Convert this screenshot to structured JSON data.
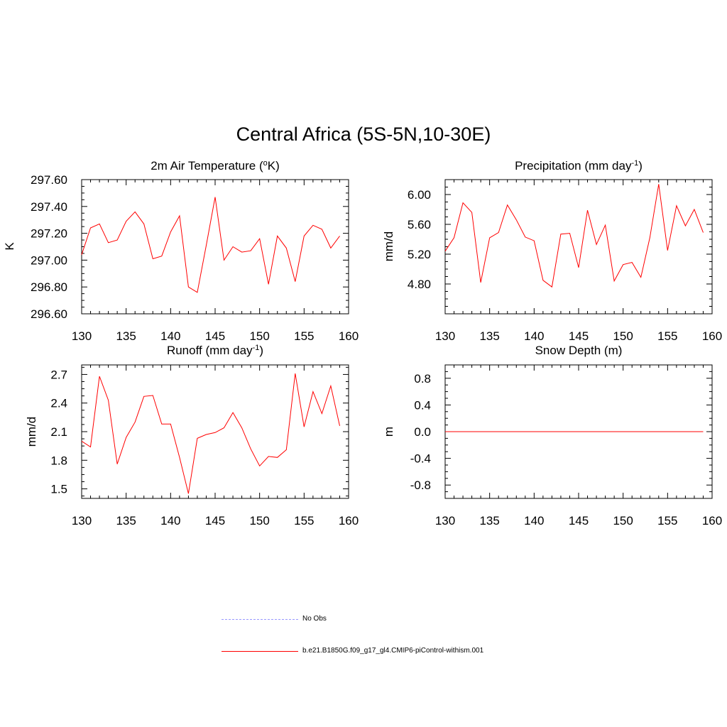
{
  "figure_title": "Central Africa (5S-5N,10-30E)",
  "chart_data": [
    {
      "type": "line",
      "title": "2m Air Temperature (",
      "title_sup": "o",
      "title_suffix": "K)",
      "ylabel": "K",
      "xlim": [
        130,
        160
      ],
      "ylim": [
        296.6,
        297.6
      ],
      "xticks": [
        "130",
        "135",
        "140",
        "145",
        "150",
        "155",
        "160"
      ],
      "yticks": [
        {
          "v": 296.6,
          "t": "296.60"
        },
        {
          "v": 296.8,
          "t": "296.80"
        },
        {
          "v": 297.0,
          "t": "297.00"
        },
        {
          "v": 297.2,
          "t": "297.20"
        },
        {
          "v": 297.4,
          "t": "297.40"
        },
        {
          "v": 297.6,
          "t": "297.60"
        }
      ],
      "x": [
        130,
        131,
        132,
        133,
        134,
        135,
        136,
        137,
        138,
        139,
        140,
        141,
        142,
        143,
        144,
        145,
        146,
        147,
        148,
        149,
        150,
        151,
        152,
        153,
        154,
        155,
        156,
        157,
        158,
        159
      ],
      "series": [
        {
          "name": "b.e21.B1850G.f09_g17_gl4.CMIP6-piControl-withism.001",
          "color": "#ff0000",
          "values": [
            297.04,
            297.24,
            297.27,
            297.13,
            297.15,
            297.29,
            297.36,
            297.27,
            297.01,
            297.03,
            297.21,
            297.33,
            296.8,
            296.76,
            297.11,
            297.47,
            297.0,
            297.1,
            297.06,
            297.07,
            297.16,
            296.82,
            297.18,
            297.09,
            296.84,
            297.18,
            297.26,
            297.23,
            297.09,
            297.18
          ]
        }
      ]
    },
    {
      "type": "line",
      "title": "Precipitation (mm day",
      "title_sup": "-1",
      "title_suffix": ")",
      "ylabel": "mm/d",
      "xlim": [
        130,
        160
      ],
      "ylim": [
        4.4,
        6.2
      ],
      "xticks": [
        "130",
        "135",
        "140",
        "145",
        "150",
        "155",
        "160"
      ],
      "yticks": [
        {
          "v": 4.8,
          "t": "4.80"
        },
        {
          "v": 5.2,
          "t": "5.20"
        },
        {
          "v": 5.6,
          "t": "5.60"
        },
        {
          "v": 6.0,
          "t": "6.00"
        }
      ],
      "x": [
        130,
        131,
        132,
        133,
        134,
        135,
        136,
        137,
        138,
        139,
        140,
        141,
        142,
        143,
        144,
        145,
        146,
        147,
        148,
        149,
        150,
        151,
        152,
        153,
        154,
        155,
        156,
        157,
        158,
        159
      ],
      "series": [
        {
          "name": "b.e21.B1850G.f09_g17_gl4.CMIP6-piControl-withism.001",
          "color": "#ff0000",
          "values": [
            5.24,
            5.42,
            5.89,
            5.76,
            4.82,
            5.42,
            5.49,
            5.86,
            5.66,
            5.43,
            5.38,
            4.85,
            4.76,
            5.47,
            5.48,
            5.02,
            5.79,
            5.33,
            5.59,
            4.84,
            5.06,
            5.09,
            4.89,
            5.42,
            6.14,
            5.25,
            5.85,
            5.58,
            5.8,
            5.49
          ]
        }
      ]
    },
    {
      "type": "line",
      "title": "Runoff (mm day",
      "title_sup": "-1",
      "title_suffix": ")",
      "ylabel": "mm/d",
      "xlim": [
        130,
        160
      ],
      "ylim": [
        1.4,
        2.8
      ],
      "xticks": [
        "130",
        "135",
        "140",
        "145",
        "150",
        "155",
        "160"
      ],
      "yticks": [
        {
          "v": 1.5,
          "t": "1.5"
        },
        {
          "v": 1.8,
          "t": "1.8"
        },
        {
          "v": 2.1,
          "t": "2.1"
        },
        {
          "v": 2.4,
          "t": "2.4"
        },
        {
          "v": 2.7,
          "t": "2.7"
        }
      ],
      "x": [
        130,
        131,
        132,
        133,
        134,
        135,
        136,
        137,
        138,
        139,
        140,
        141,
        142,
        143,
        144,
        145,
        146,
        147,
        148,
        149,
        150,
        151,
        152,
        153,
        154,
        155,
        156,
        157,
        158,
        159
      ],
      "series": [
        {
          "name": "b.e21.B1850G.f09_g17_gl4.CMIP6-piControl-withism.001",
          "color": "#ff0000",
          "values": [
            2.0,
            1.94,
            2.68,
            2.43,
            1.76,
            2.04,
            2.2,
            2.47,
            2.48,
            2.18,
            2.18,
            1.83,
            1.45,
            2.03,
            2.07,
            2.09,
            2.14,
            2.3,
            2.14,
            1.92,
            1.74,
            1.84,
            1.83,
            1.91,
            2.71,
            2.15,
            2.52,
            2.29,
            2.58,
            2.16
          ]
        }
      ]
    },
    {
      "type": "line",
      "title": "Snow Depth (m)",
      "title_sup": "",
      "title_suffix": "",
      "ylabel": "m",
      "xlim": [
        130,
        160
      ],
      "ylim": [
        -1.0,
        1.0
      ],
      "xticks": [
        "130",
        "135",
        "140",
        "145",
        "150",
        "155",
        "160"
      ],
      "yticks": [
        {
          "v": -0.8,
          "t": "-0.8"
        },
        {
          "v": -0.4,
          "t": "-0.4"
        },
        {
          "v": 0.0,
          "t": "0.0"
        },
        {
          "v": 0.4,
          "t": "0.4"
        },
        {
          "v": 0.8,
          "t": "0.8"
        }
      ],
      "x": [
        130,
        131,
        132,
        133,
        134,
        135,
        136,
        137,
        138,
        139,
        140,
        141,
        142,
        143,
        144,
        145,
        146,
        147,
        148,
        149,
        150,
        151,
        152,
        153,
        154,
        155,
        156,
        157,
        158,
        159
      ],
      "series": [
        {
          "name": "b.e21.B1850G.f09_g17_gl4.CMIP6-piControl-withism.001",
          "color": "#ff0000",
          "values": [
            0,
            0,
            0,
            0,
            0,
            0,
            0,
            0,
            0,
            0,
            0,
            0,
            0,
            0,
            0,
            0,
            0,
            0,
            0,
            0,
            0,
            0,
            0,
            0,
            0,
            0,
            0,
            0,
            0,
            0
          ]
        }
      ]
    }
  ],
  "legend": [
    {
      "label": "No Obs",
      "color": "#9999ff",
      "style": "dashed"
    },
    {
      "label": "b.e21.B1850G.f09_g17_gl4.CMIP6-piControl-withism.001",
      "color": "#ff0000",
      "style": "solid"
    }
  ]
}
